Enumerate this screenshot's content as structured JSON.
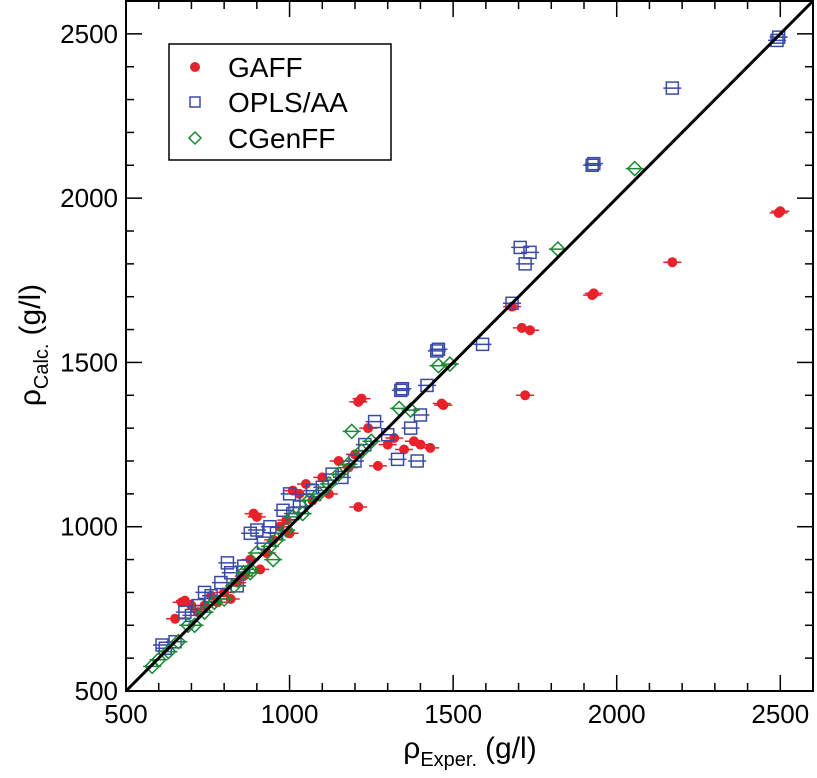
{
  "chart_data": {
    "type": "scatter",
    "xlabel": {
      "symbol": "ρ",
      "sub": "Exper.",
      "unit": "(g/l)"
    },
    "ylabel": {
      "symbol": "ρ",
      "sub": "Calc.",
      "unit": "(g/l)"
    },
    "xlim": [
      500,
      2600
    ],
    "ylim": [
      500,
      2600
    ],
    "xticks": [
      "500",
      "1000",
      "1500",
      "2000",
      "2500"
    ],
    "yticks": [
      "500",
      "1000",
      "1500",
      "2000",
      "2500"
    ],
    "grid": false,
    "legend_position": "top-left",
    "reference_line": "y = x",
    "series": [
      {
        "name": "GAFF",
        "marker": "filled-circle",
        "color": "#e8212a",
        "points": [
          [
            650,
            720
          ],
          [
            670,
            770
          ],
          [
            680,
            775
          ],
          [
            700,
            760
          ],
          [
            720,
            740
          ],
          [
            740,
            760
          ],
          [
            760,
            790
          ],
          [
            780,
            770
          ],
          [
            800,
            800
          ],
          [
            820,
            780
          ],
          [
            840,
            830
          ],
          [
            860,
            850
          ],
          [
            880,
            900
          ],
          [
            890,
            1040
          ],
          [
            900,
            1030
          ],
          [
            910,
            870
          ],
          [
            930,
            920
          ],
          [
            950,
            960
          ],
          [
            970,
            1000
          ],
          [
            990,
            1020
          ],
          [
            1000,
            980
          ],
          [
            1010,
            1110
          ],
          [
            1030,
            1100
          ],
          [
            1050,
            1130
          ],
          [
            1070,
            1080
          ],
          [
            1100,
            1150
          ],
          [
            1120,
            1100
          ],
          [
            1150,
            1200
          ],
          [
            1180,
            1180
          ],
          [
            1200,
            1220
          ],
          [
            1210,
            1060
          ],
          [
            1220,
            1390
          ],
          [
            1210,
            1380
          ],
          [
            1240,
            1300
          ],
          [
            1270,
            1185
          ],
          [
            1300,
            1250
          ],
          [
            1320,
            1270
          ],
          [
            1350,
            1235
          ],
          [
            1380,
            1260
          ],
          [
            1400,
            1250
          ],
          [
            1430,
            1240
          ],
          [
            1465,
            1375
          ],
          [
            1470,
            1370
          ],
          [
            1680,
            1670
          ],
          [
            1710,
            1605
          ],
          [
            1735,
            1598
          ],
          [
            1720,
            1400
          ],
          [
            1925,
            1705
          ],
          [
            1930,
            1710
          ],
          [
            2170,
            1805
          ],
          [
            2495,
            1955
          ],
          [
            2500,
            1960
          ]
        ]
      },
      {
        "name": "OPLS/AA",
        "marker": "open-square",
        "color": "#3a4aa8",
        "points": [
          [
            610,
            640
          ],
          [
            620,
            630
          ],
          [
            650,
            650
          ],
          [
            680,
            740
          ],
          [
            700,
            730
          ],
          [
            720,
            760
          ],
          [
            740,
            800
          ],
          [
            760,
            790
          ],
          [
            790,
            830
          ],
          [
            810,
            890
          ],
          [
            820,
            860
          ],
          [
            840,
            820
          ],
          [
            860,
            880
          ],
          [
            880,
            980
          ],
          [
            900,
            990
          ],
          [
            920,
            950
          ],
          [
            940,
            1000
          ],
          [
            960,
            980
          ],
          [
            980,
            1050
          ],
          [
            1000,
            1100
          ],
          [
            1010,
            1040
          ],
          [
            1030,
            1060
          ],
          [
            1050,
            1080
          ],
          [
            1070,
            1110
          ],
          [
            1100,
            1120
          ],
          [
            1130,
            1160
          ],
          [
            1160,
            1150
          ],
          [
            1200,
            1200
          ],
          [
            1230,
            1250
          ],
          [
            1260,
            1320
          ],
          [
            1300,
            1280
          ],
          [
            1330,
            1205
          ],
          [
            1340,
            1415
          ],
          [
            1345,
            1420
          ],
          [
            1370,
            1300
          ],
          [
            1390,
            1200
          ],
          [
            1400,
            1340
          ],
          [
            1420,
            1430
          ],
          [
            1450,
            1535
          ],
          [
            1455,
            1540
          ],
          [
            1590,
            1555
          ],
          [
            1680,
            1680
          ],
          [
            1705,
            1850
          ],
          [
            1720,
            1800
          ],
          [
            1735,
            1835
          ],
          [
            1925,
            2100
          ],
          [
            1930,
            2105
          ],
          [
            2170,
            2335
          ],
          [
            2490,
            2480
          ],
          [
            2495,
            2490
          ]
        ]
      },
      {
        "name": "CGenFF",
        "marker": "open-diamond",
        "color": "#1a8a35",
        "points": [
          [
            580,
            575
          ],
          [
            600,
            595
          ],
          [
            630,
            620
          ],
          [
            660,
            650
          ],
          [
            690,
            700
          ],
          [
            710,
            700
          ],
          [
            740,
            740
          ],
          [
            770,
            770
          ],
          [
            800,
            780
          ],
          [
            830,
            820
          ],
          [
            860,
            860
          ],
          [
            880,
            870
          ],
          [
            900,
            920
          ],
          [
            940,
            940
          ],
          [
            960,
            960
          ],
          [
            990,
            990
          ],
          [
            1010,
            1030
          ],
          [
            1040,
            1040
          ],
          [
            1060,
            1080
          ],
          [
            1090,
            1100
          ],
          [
            1120,
            1130
          ],
          [
            1150,
            1160
          ],
          [
            1180,
            1190
          ],
          [
            1190,
            1290
          ],
          [
            1220,
            1230
          ],
          [
            1250,
            1260
          ],
          [
            1335,
            1360
          ],
          [
            1370,
            1355
          ],
          [
            1455,
            1490
          ],
          [
            1490,
            1495
          ],
          [
            1820,
            1845
          ],
          [
            2055,
            2090
          ],
          [
            880,
            860
          ],
          [
            950,
            900
          ]
        ]
      }
    ]
  }
}
